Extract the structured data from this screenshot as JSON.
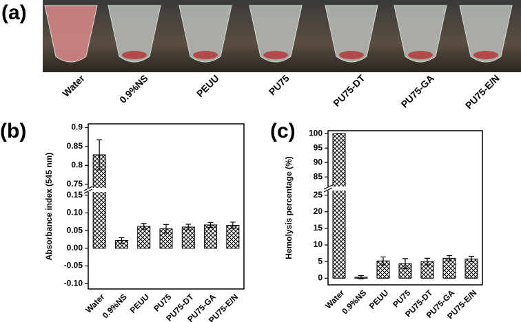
{
  "panel_a": {
    "label": "(a)",
    "samples": [
      "Water",
      "0.9%NS",
      "PEUU",
      "PU75",
      "PU75-DT",
      "PU75-GA",
      "PU75-E/N"
    ]
  },
  "chart_data": [
    {
      "type": "bar",
      "label": "(b)",
      "ylabel": "Absorbance index (545 nm)",
      "categories": [
        "Water",
        "0.9%NS",
        "PEUU",
        "PU75",
        "PU75-DT",
        "PU75-GA",
        "PU75-E/N"
      ],
      "values": [
        0.828,
        0.022,
        0.062,
        0.055,
        0.06,
        0.066,
        0.065
      ],
      "errors": [
        0.04,
        0.008,
        0.008,
        0.012,
        0.008,
        0.007,
        0.009
      ],
      "color": "#000000",
      "ylim": [
        [
          -0.115,
          0.165
        ],
        [
          0.735,
          0.91
        ]
      ],
      "yticks": [
        {
          "value": -0.1,
          "label": "-0.10"
        },
        -0.05,
        {
          "value": 0,
          "label": "0.00"
        },
        0.05,
        {
          "value": 0.1,
          "label": "0.10"
        },
        0.15,
        0.75,
        0.8,
        0.85,
        0.9
      ]
    },
    {
      "type": "bar",
      "label": "(c)",
      "ylabel": "Hemolysis percentage (%)",
      "categories": [
        "Water",
        "0.9%NS",
        "PEUU",
        "PU75",
        "PU75-DT",
        "PU75-GA",
        "PU75-E/N"
      ],
      "values": [
        100,
        0.3,
        5.2,
        4.4,
        5,
        6,
        5.8
      ],
      "errors": [
        0,
        0.5,
        1.2,
        1.5,
        1,
        0.8,
        0.8
      ],
      "color": "#000000",
      "ylim": [
        [
          -2,
          27
        ],
        [
          81,
          101
        ]
      ],
      "yticks": [
        0,
        5,
        10,
        15,
        20,
        25,
        85,
        90,
        95,
        100
      ]
    }
  ]
}
